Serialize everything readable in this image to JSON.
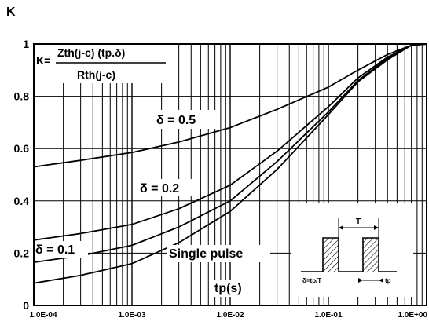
{
  "chart_data": {
    "type": "line",
    "ylabel": "K",
    "xlabel": "tp(s)",
    "x_scale": "log",
    "xlim": [
      0.0001,
      1
    ],
    "ylim": [
      0,
      1
    ],
    "x_ticks": [
      "1.0E-04",
      "1.0E-03",
      "1.0E-02",
      "1.0E-01",
      "1.0E+00"
    ],
    "y_ticks": [
      "0",
      "0.2",
      "0.4",
      "0.6",
      "0.8",
      "1"
    ],
    "grid": true,
    "formula": {
      "lhs": "K=",
      "numerator": "Zth(j-c) (tp.δ)",
      "denominator": "Rth(j-c)"
    },
    "inset": {
      "period_label": "T",
      "duty_label": "δ=tp/T",
      "pulse_label": "tp"
    },
    "series": [
      {
        "name": "δ = 0.5",
        "label": "δ = 0.5",
        "x": [
          0.0001,
          0.0003,
          0.001,
          0.003,
          0.01,
          0.03,
          0.1,
          0.2,
          0.4,
          0.7,
          1.0
        ],
        "y": [
          0.53,
          0.555,
          0.585,
          0.625,
          0.68,
          0.75,
          0.835,
          0.9,
          0.96,
          0.995,
          1.0
        ]
      },
      {
        "name": "δ = 0.2",
        "label": "δ = 0.2",
        "x": [
          0.0001,
          0.0003,
          0.001,
          0.003,
          0.01,
          0.03,
          0.1,
          0.2,
          0.4,
          0.7,
          1.0
        ],
        "y": [
          0.25,
          0.275,
          0.31,
          0.37,
          0.46,
          0.59,
          0.76,
          0.87,
          0.95,
          0.995,
          1.0
        ]
      },
      {
        "name": "δ = 0.1",
        "label": "δ = 0.1",
        "x": [
          0.0001,
          0.0003,
          0.001,
          0.003,
          0.01,
          0.03,
          0.1,
          0.2,
          0.4,
          0.7,
          1.0
        ],
        "y": [
          0.165,
          0.19,
          0.23,
          0.3,
          0.4,
          0.55,
          0.74,
          0.86,
          0.945,
          0.995,
          1.0
        ]
      },
      {
        "name": "Single pulse",
        "label": "Single pulse",
        "x": [
          0.0001,
          0.0003,
          0.001,
          0.003,
          0.01,
          0.03,
          0.1,
          0.2,
          0.4,
          0.7,
          1.0
        ],
        "y": [
          0.085,
          0.115,
          0.16,
          0.24,
          0.36,
          0.52,
          0.73,
          0.855,
          0.94,
          0.995,
          1.0
        ]
      }
    ]
  }
}
